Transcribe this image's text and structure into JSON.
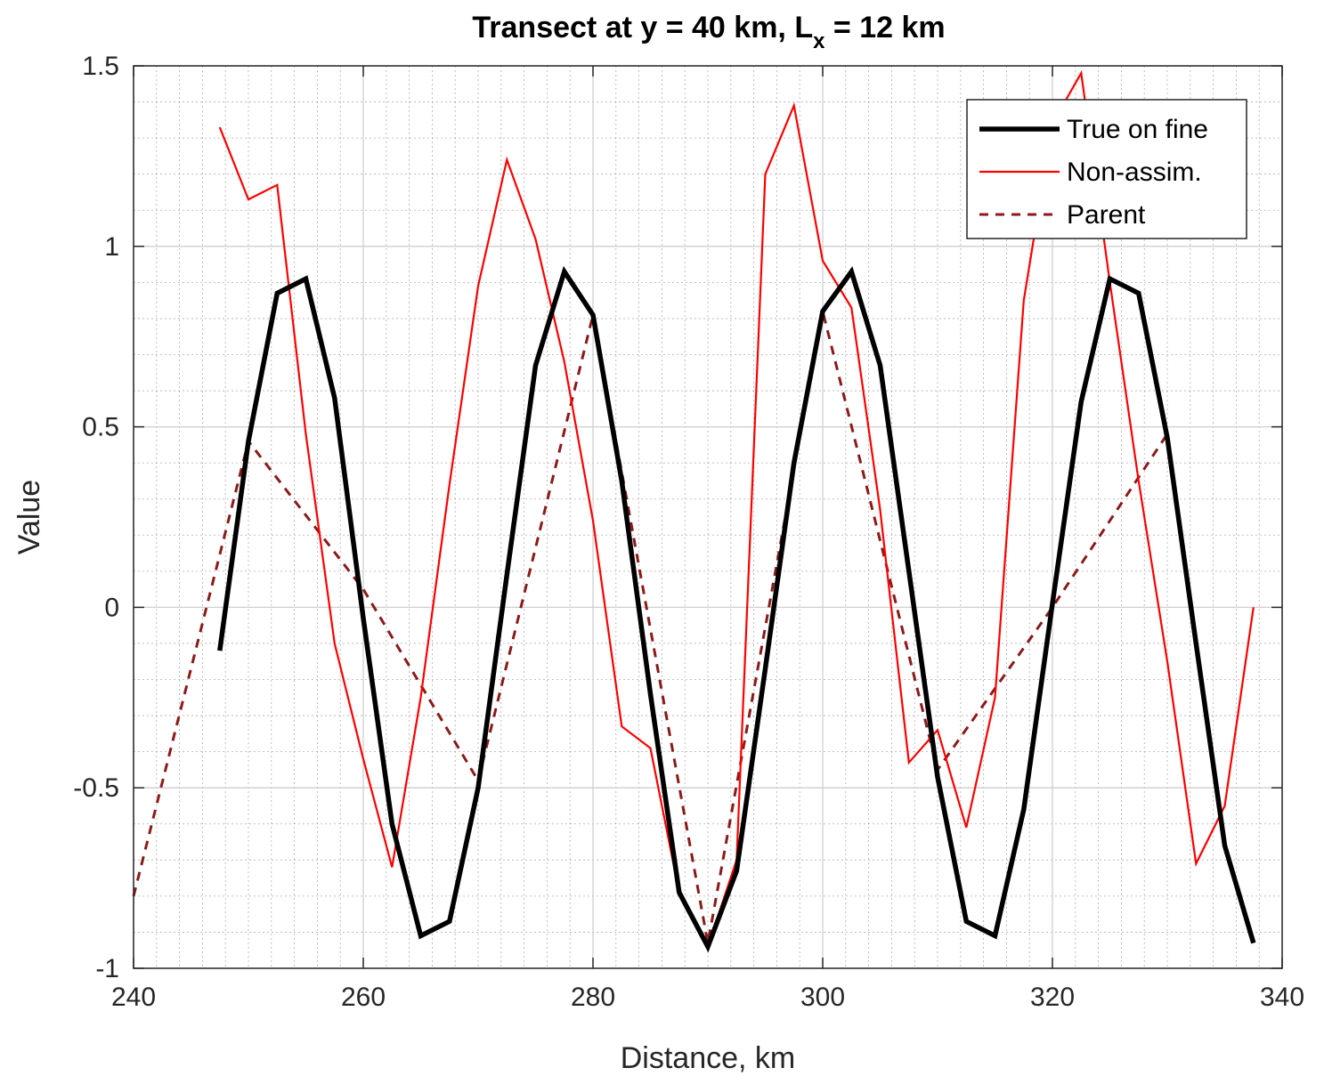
{
  "chart_data": {
    "type": "line",
    "title": "Transect at y = 40 km, L",
    "title_subscript": "x",
    "title_suffix": " = 12 km",
    "xlabel": "Distance, km",
    "ylabel": "Value",
    "xlim": [
      240,
      340
    ],
    "ylim": [
      -1,
      1.5
    ],
    "xticks": [
      240,
      260,
      280,
      300,
      320,
      340
    ],
    "xtick_labels": [
      "240",
      "260",
      "280",
      "300",
      "320",
      "340"
    ],
    "yticks": [
      -1,
      -0.5,
      0,
      0.5,
      1,
      1.5
    ],
    "ytick_labels": [
      "-1",
      "-0.5",
      "0",
      "0.5",
      "1",
      "1.5"
    ],
    "grid": true,
    "minor_grid": true,
    "legend_position": "top-right",
    "series": [
      {
        "name": "True on fine",
        "color": "#000000",
        "style": "solid-thick",
        "x": [
          247.5,
          250,
          252.5,
          255,
          257.5,
          260,
          262.5,
          265,
          267.5,
          270,
          272.5,
          275,
          277.5,
          280,
          282.5,
          285,
          287.5,
          290,
          292.5,
          295,
          297.5,
          300,
          302.5,
          305,
          307.5,
          310,
          312.5,
          315,
          317.5,
          320,
          322.5,
          325,
          327.5,
          330,
          332.5,
          335,
          337.5
        ],
        "y": [
          -0.12,
          0.46,
          0.87,
          0.91,
          0.58,
          -0.03,
          -0.6,
          -0.91,
          -0.87,
          -0.5,
          0.09,
          0.67,
          0.93,
          0.81,
          0.35,
          -0.24,
          -0.79,
          -0.94,
          -0.73,
          -0.17,
          0.4,
          0.82,
          0.93,
          0.67,
          0.1,
          -0.47,
          -0.87,
          -0.91,
          -0.56,
          0.01,
          0.57,
          0.91,
          0.87,
          0.47,
          -0.1,
          -0.66,
          -0.93
        ]
      },
      {
        "name": "Non-assim.",
        "color": "#ff0000",
        "style": "solid-thin",
        "x": [
          247.5,
          250,
          252.5,
          255,
          257.5,
          260,
          262.5,
          265,
          267.5,
          270,
          272.5,
          275,
          277.5,
          280,
          282.5,
          285,
          287.5,
          290,
          292.5,
          295,
          297.5,
          300,
          302.5,
          305,
          307.5,
          310,
          312.5,
          315,
          317.5,
          320,
          322.5,
          325,
          327.5,
          330,
          332.5,
          335,
          337.5
        ],
        "y": [
          1.33,
          1.13,
          1.17,
          0.48,
          -0.1,
          -0.42,
          -0.72,
          -0.25,
          0.34,
          0.89,
          1.24,
          1.02,
          0.68,
          0.24,
          -0.33,
          -0.39,
          -0.79,
          -0.94,
          -0.7,
          1.2,
          1.39,
          0.96,
          0.83,
          0.27,
          -0.43,
          -0.34,
          -0.61,
          -0.25,
          0.85,
          1.34,
          1.48,
          0.9,
          0.35,
          -0.15,
          -0.71,
          -0.55,
          0.0
        ]
      },
      {
        "name": "Parent",
        "color": "#8b1a1a",
        "style": "dashed",
        "x": [
          240,
          250,
          260,
          270,
          280,
          290,
          300,
          310,
          320,
          330
        ],
        "y": [
          -0.8,
          0.46,
          0.05,
          -0.48,
          0.81,
          -0.93,
          0.82,
          -0.45,
          0.0,
          0.48
        ]
      }
    ]
  }
}
